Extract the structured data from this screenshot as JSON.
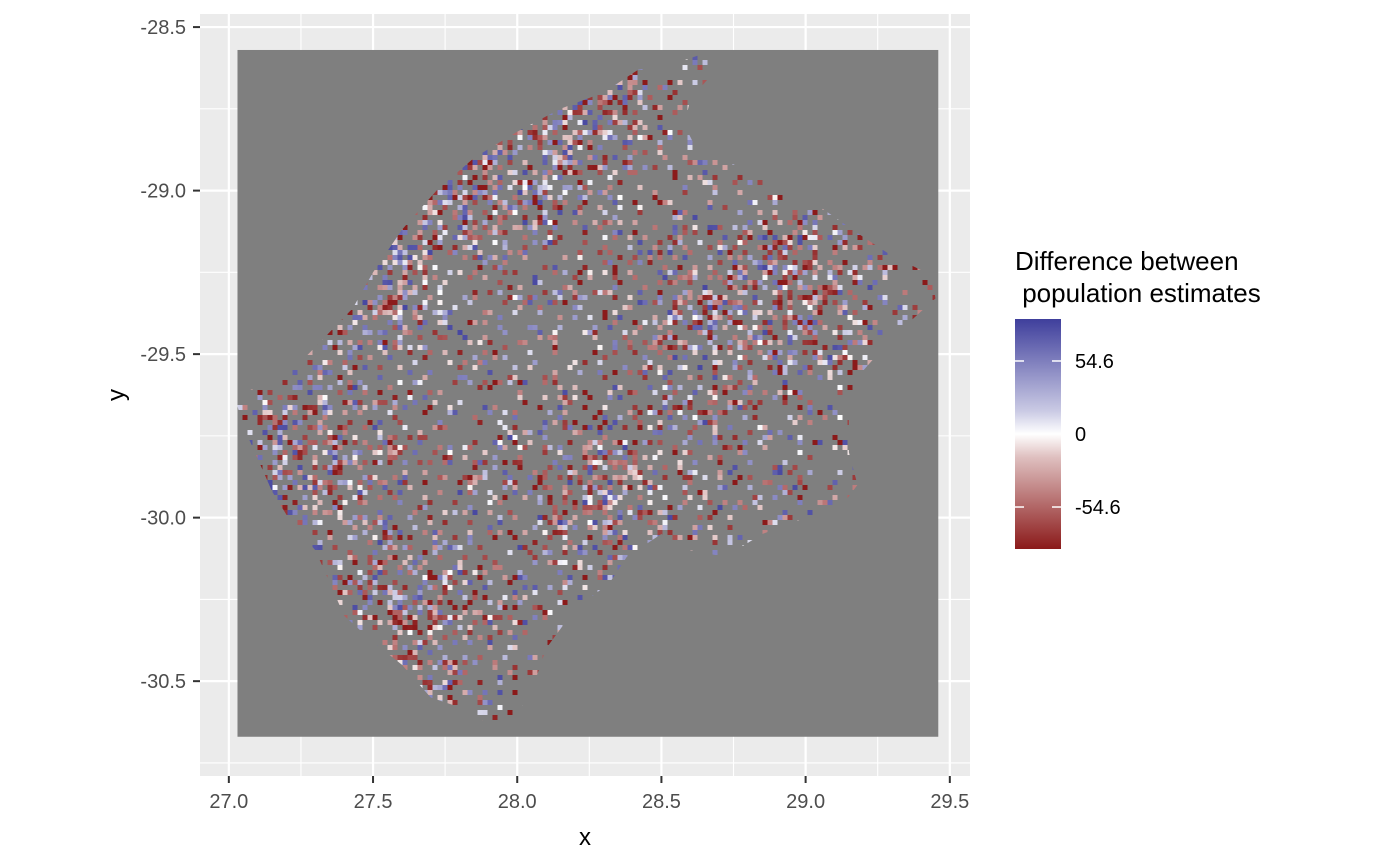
{
  "chart_data": {
    "type": "heatmap",
    "title": "",
    "xlabel": "x",
    "ylabel": "y",
    "xlim": [
      26.9,
      29.57
    ],
    "ylim": [
      -30.79,
      -28.46
    ],
    "x_ticks": [
      27.0,
      27.5,
      28.0,
      28.5,
      29.0,
      29.5
    ],
    "x_tick_labels": [
      "27.0",
      "27.5",
      "28.0",
      "28.5",
      "29.0",
      "29.5"
    ],
    "y_ticks": [
      -28.5,
      -29.0,
      -29.5,
      -30.0,
      -30.5
    ],
    "y_tick_labels": [
      "-28.5",
      "-29.0",
      "-29.5",
      "-30.0",
      "-30.5"
    ],
    "raster_extent": {
      "x": [
        27.03,
        29.46
      ],
      "y": [
        -30.67,
        -28.57
      ]
    },
    "raster_background": "#7f7f7f",
    "panel_background": "#ebebeb",
    "grid": true,
    "region_outline": [
      [
        27.02,
        -29.63
      ],
      [
        27.1,
        -29.6
      ],
      [
        27.22,
        -29.55
      ],
      [
        27.32,
        -29.46
      ],
      [
        27.43,
        -29.36
      ],
      [
        27.5,
        -29.25
      ],
      [
        27.6,
        -29.12
      ],
      [
        27.72,
        -29.0
      ],
      [
        27.85,
        -28.9
      ],
      [
        28.0,
        -28.82
      ],
      [
        28.15,
        -28.75
      ],
      [
        28.3,
        -28.7
      ],
      [
        28.42,
        -28.63
      ],
      [
        28.55,
        -28.61
      ],
      [
        28.65,
        -28.58
      ],
      [
        28.68,
        -28.6
      ],
      [
        28.66,
        -28.66
      ],
      [
        28.6,
        -28.72
      ],
      [
        28.58,
        -28.8
      ],
      [
        28.62,
        -28.87
      ],
      [
        28.75,
        -28.92
      ],
      [
        28.9,
        -28.98
      ],
      [
        29.05,
        -29.05
      ],
      [
        29.18,
        -29.13
      ],
      [
        29.3,
        -29.2
      ],
      [
        29.44,
        -29.26
      ],
      [
        29.45,
        -29.33
      ],
      [
        29.3,
        -29.45
      ],
      [
        29.2,
        -29.55
      ],
      [
        29.15,
        -29.68
      ],
      [
        29.15,
        -29.8
      ],
      [
        29.18,
        -29.9
      ],
      [
        29.12,
        -29.97
      ],
      [
        29.0,
        -30.0
      ],
      [
        28.85,
        -30.05
      ],
      [
        28.72,
        -30.12
      ],
      [
        28.6,
        -30.1
      ],
      [
        28.5,
        -30.05
      ],
      [
        28.38,
        -30.12
      ],
      [
        28.32,
        -30.2
      ],
      [
        28.2,
        -30.28
      ],
      [
        28.1,
        -30.4
      ],
      [
        28.05,
        -30.53
      ],
      [
        28.0,
        -30.6
      ],
      [
        27.9,
        -30.63
      ],
      [
        27.8,
        -30.58
      ],
      [
        27.7,
        -30.55
      ],
      [
        27.6,
        -30.45
      ],
      [
        27.5,
        -30.38
      ],
      [
        27.4,
        -30.3
      ],
      [
        27.35,
        -30.2
      ],
      [
        27.3,
        -30.1
      ],
      [
        27.22,
        -30.02
      ],
      [
        27.15,
        -29.92
      ],
      [
        27.1,
        -29.82
      ],
      [
        27.05,
        -29.72
      ]
    ],
    "legend": {
      "title_lines": [
        "Difference between",
        " population estimates"
      ],
      "breaks": [
        54.6,
        0,
        -54.6
      ],
      "labels": [
        "54.6",
        "0",
        "-54.6"
      ],
      "range": [
        -86,
        86
      ],
      "colors": {
        "high": "#3f3f9c",
        "mid": "#ffffff",
        "low": "#8b1a1a"
      },
      "placement": "right"
    }
  }
}
